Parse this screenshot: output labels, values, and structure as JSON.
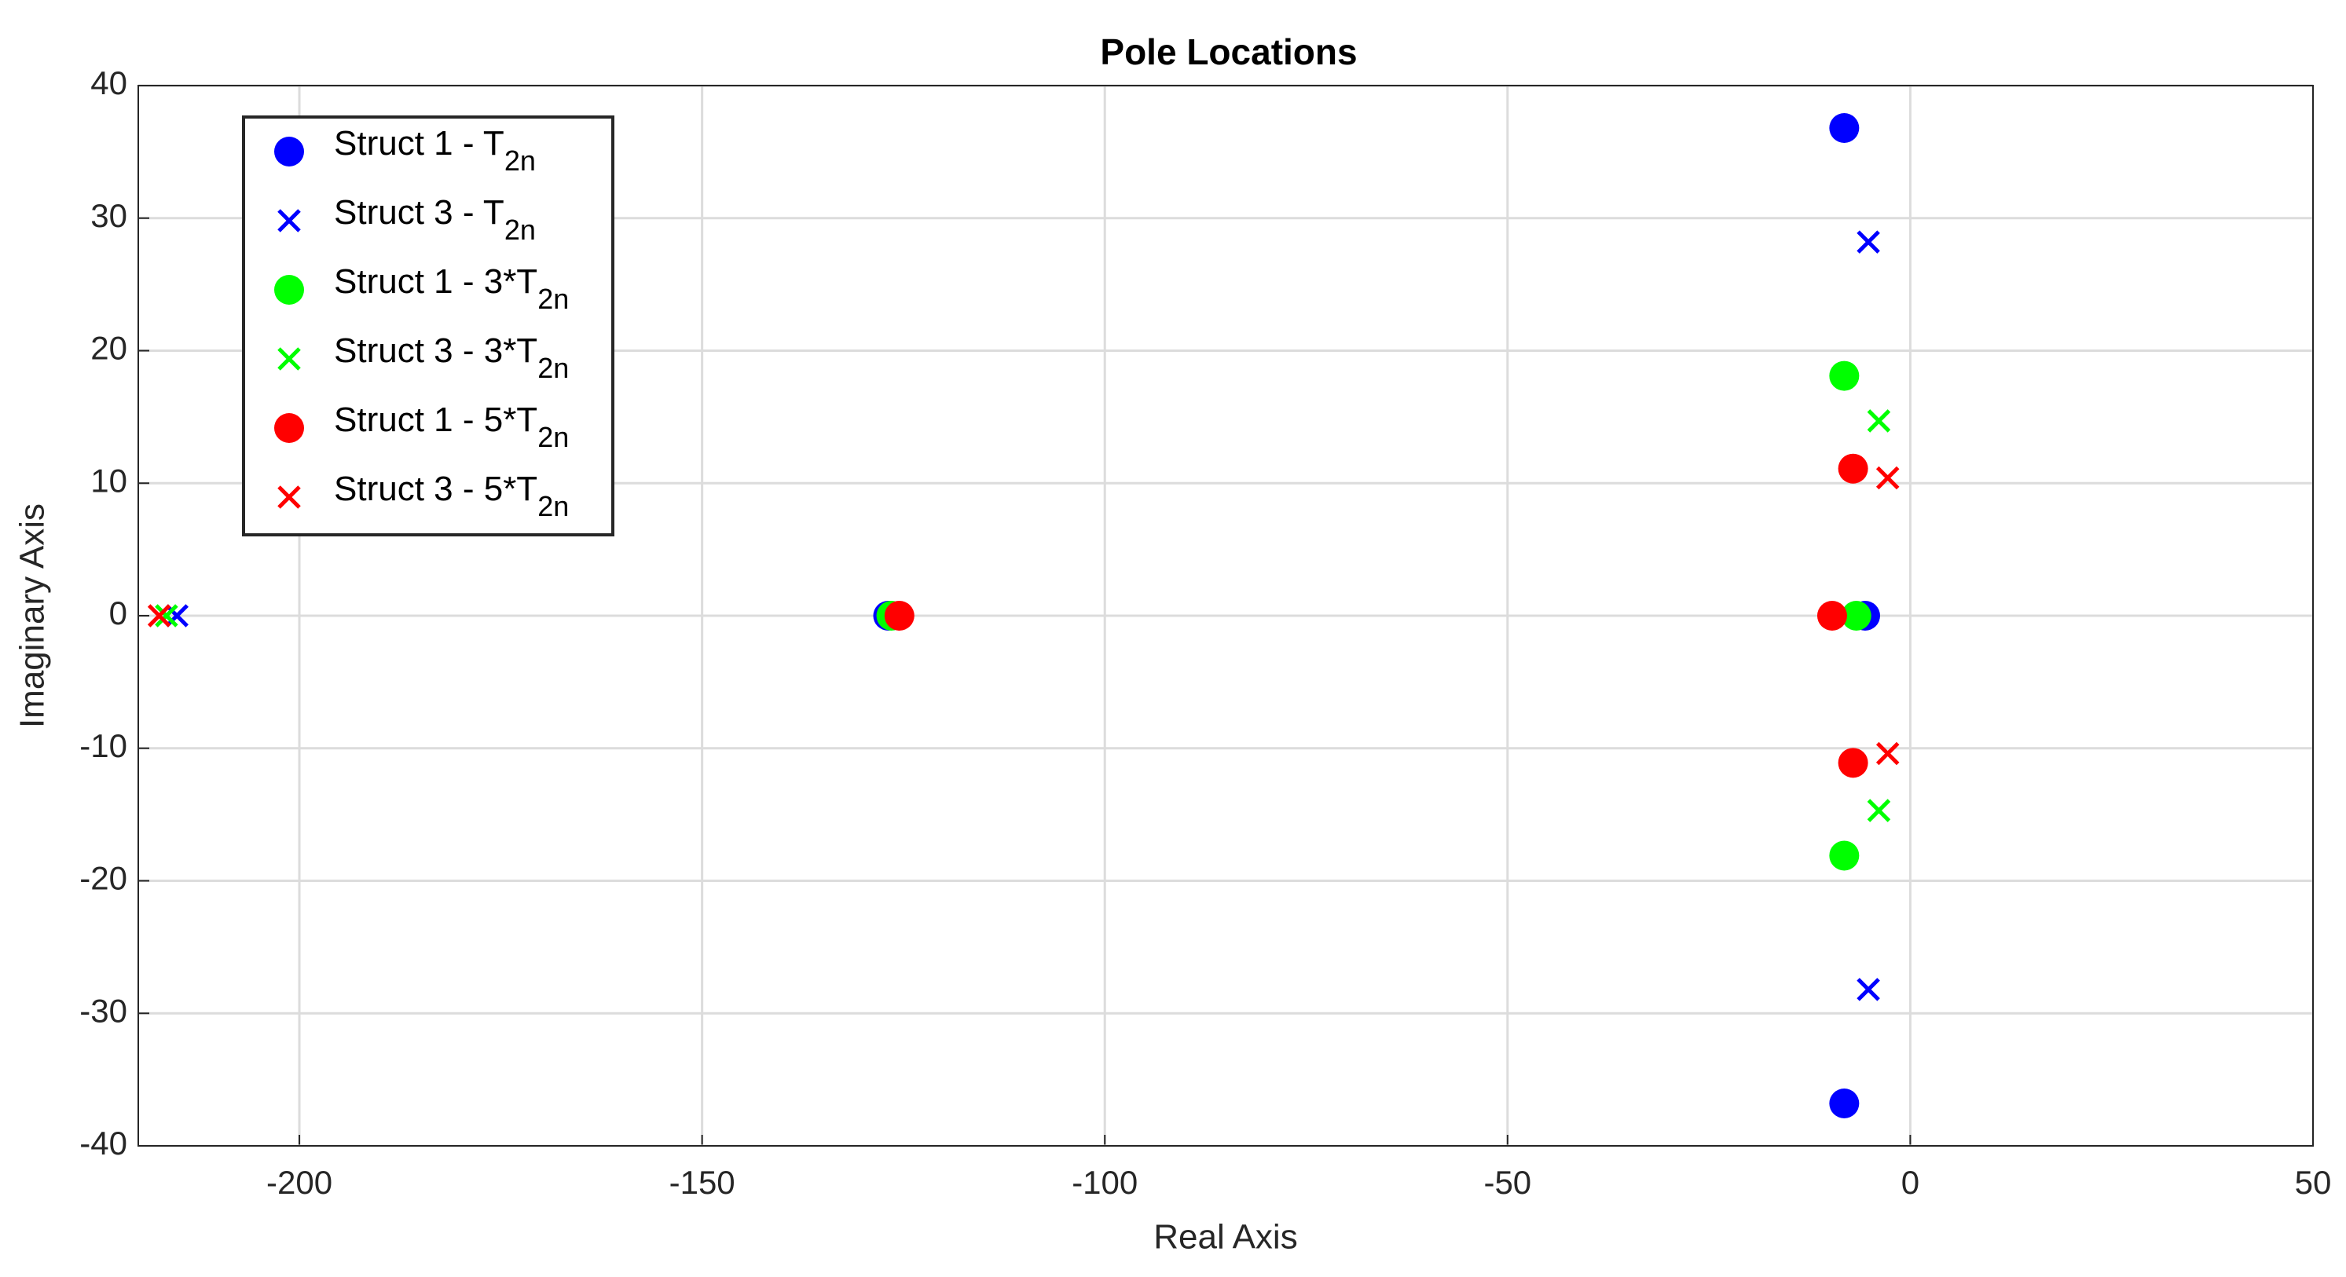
{
  "chart_data": {
    "type": "scatter",
    "title": "Pole Locations",
    "x_label": "Real Axis",
    "y_label": "Imaginary Axis",
    "xlim": [
      -220,
      50
    ],
    "ylim": [
      -40,
      40
    ],
    "xticks": [
      -200,
      -150,
      -100,
      -50,
      0,
      50
    ],
    "yticks": [
      -40,
      -30,
      -20,
      -10,
      0,
      10,
      20,
      30,
      40
    ],
    "grid": true,
    "legend": "upper left",
    "series": [
      {
        "name": "Struct 1 - T2n",
        "color": "#0000ff",
        "marker": "circle",
        "x": [
          -8.2,
          -8.2,
          -126.9,
          -5.6
        ],
        "values": [
          36.8,
          -36.8,
          0,
          0
        ]
      },
      {
        "name": "Struct 3 - T2n",
        "color": "#0000ff",
        "marker": "x",
        "x": [
          -5.2,
          -5.2,
          -215.2
        ],
        "values": [
          28.2,
          -28.2,
          0
        ]
      },
      {
        "name": "Struct 1 - 3*T2n",
        "color": "#00ff00",
        "marker": "circle",
        "x": [
          -8.2,
          -8.2,
          -126.5,
          -6.7
        ],
        "values": [
          18.1,
          -18.1,
          0,
          0
        ]
      },
      {
        "name": "Struct 3 - 3*T2n",
        "color": "#00ff00",
        "marker": "x",
        "x": [
          -3.9,
          -3.9,
          -216.5
        ],
        "values": [
          14.7,
          -14.7,
          0
        ]
      },
      {
        "name": "Struct 1 - 5*T2n",
        "color": "#ff0000",
        "marker": "circle",
        "x": [
          -7.1,
          -7.1,
          -125.5,
          -9.7
        ],
        "values": [
          11.1,
          -11.1,
          0,
          0
        ]
      },
      {
        "name": "Struct 3 - 5*T2n",
        "color": "#ff0000",
        "marker": "x",
        "x": [
          -2.8,
          -2.8,
          -217.4
        ],
        "values": [
          10.4,
          -10.4,
          0
        ]
      }
    ]
  }
}
